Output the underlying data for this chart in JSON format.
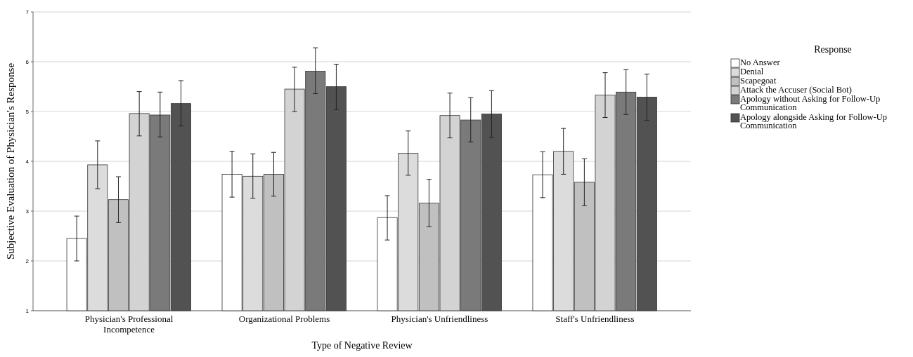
{
  "chart_data": {
    "type": "bar",
    "xlabel": "Type of Negative Review",
    "ylabel": "Subjective Evaluation of Physician's Response",
    "legend_title": "Response",
    "categories": [
      "Physician's Professional Incompetence",
      "Organizational Problems",
      "Physician's Unfriendliness",
      "Staff's Unfriendliness"
    ],
    "series": [
      {
        "name": "No Answer",
        "color": "#ffffff",
        "values": [
          2.45,
          3.74,
          2.87,
          3.73
        ],
        "errors": [
          [
            2.0,
            2.9
          ],
          [
            3.28,
            4.2
          ],
          [
            2.42,
            3.31
          ],
          [
            3.27,
            4.19
          ]
        ]
      },
      {
        "name": "Denial",
        "color": "#dcdcdc",
        "values": [
          3.93,
          3.7,
          4.16,
          4.2
        ],
        "errors": [
          [
            3.45,
            4.41
          ],
          [
            3.26,
            4.15
          ],
          [
            3.72,
            4.61
          ],
          [
            3.74,
            4.66
          ]
        ]
      },
      {
        "name": "Scapegoat",
        "color": "#c0c0c0",
        "values": [
          3.23,
          3.74,
          3.16,
          3.58
        ],
        "errors": [
          [
            2.77,
            3.69
          ],
          [
            3.3,
            4.18
          ],
          [
            2.69,
            3.64
          ],
          [
            3.11,
            4.05
          ]
        ]
      },
      {
        "name": "Attack the Accuser (Social Bot)",
        "color": "#d3d3d3",
        "values": [
          4.96,
          5.45,
          4.92,
          5.33
        ],
        "errors": [
          [
            4.51,
            5.4
          ],
          [
            5.0,
            5.89
          ],
          [
            4.47,
            5.37
          ],
          [
            4.88,
            5.78
          ]
        ]
      },
      {
        "name": "Apology without Asking for Follow-Up Communication",
        "color": "#7a7a7a",
        "values": [
          4.93,
          5.81,
          4.83,
          5.39
        ],
        "errors": [
          [
            4.49,
            5.39
          ],
          [
            5.36,
            6.28
          ],
          [
            4.39,
            5.28
          ],
          [
            4.94,
            5.84
          ]
        ]
      },
      {
        "name": "Apology alongside Asking for Follow-Up Communication",
        "color": "#525252",
        "values": [
          5.16,
          5.5,
          4.95,
          5.29
        ],
        "errors": [
          [
            4.71,
            5.62
          ],
          [
            5.04,
            5.95
          ],
          [
            4.48,
            5.42
          ],
          [
            4.82,
            5.75
          ]
        ]
      }
    ],
    "ylim": [
      1,
      7
    ],
    "yticks": [
      1,
      2,
      3,
      4,
      5,
      6,
      7
    ],
    "grid": "y",
    "legend": "right"
  }
}
